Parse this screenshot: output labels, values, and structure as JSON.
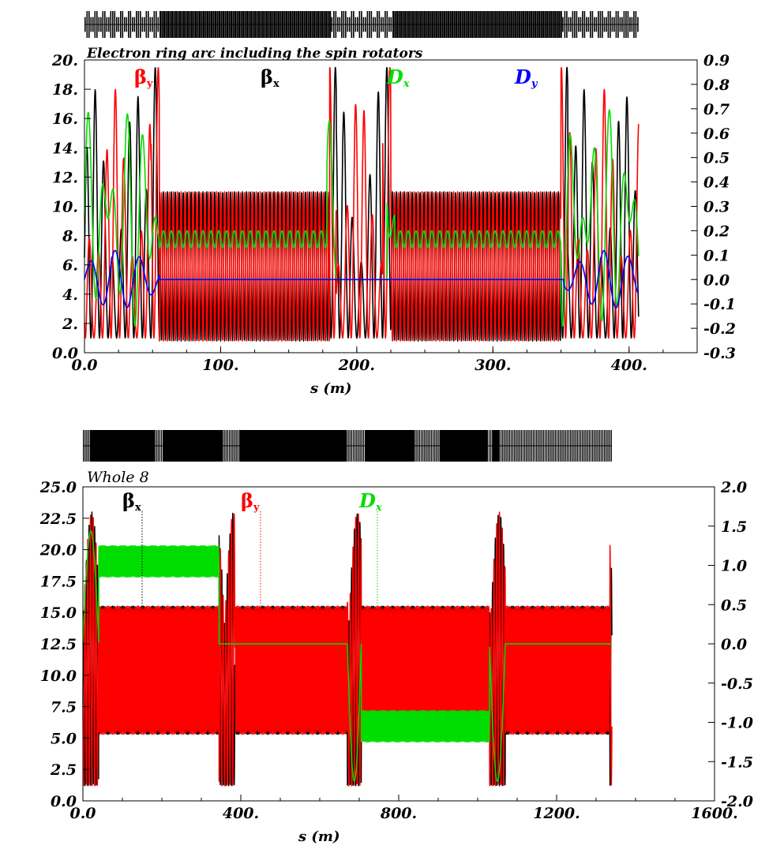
{
  "chart_data": [
    {
      "type": "line",
      "title": "Electron ring arc including the spin rotators",
      "xlabel": "s (m)",
      "x_ticks": [
        "0.0",
        "100.",
        "200.",
        "300.",
        "400."
      ],
      "y_left_ticks": [
        "0.0",
        "2.",
        "4.",
        "6.",
        "8.",
        "10.",
        "12.",
        "14.",
        "16.",
        "18.",
        "20."
      ],
      "y_right_ticks": [
        "-0.3",
        "-0.2",
        "-0.1",
        "0.0",
        "0.1",
        "0.2",
        "0.3",
        "0.4",
        "0.5",
        "0.6",
        "0.7",
        "0.8",
        "0.9"
      ],
      "xlim": [
        0,
        450
      ],
      "ylim_left": [
        0,
        20
      ],
      "ylim_right": [
        -0.3,
        0.9
      ],
      "s_end": 407,
      "series": [
        {
          "name": "βy",
          "label_main": "β",
          "label_sub": "y",
          "color": "#ff0000",
          "axis": "left"
        },
        {
          "name": "βx",
          "label_main": "β",
          "label_sub": "x",
          "color": "#000000",
          "axis": "left"
        },
        {
          "name": "Dx",
          "label_main": "D",
          "label_sub": "x",
          "color": "#00dd00",
          "axis": "right"
        },
        {
          "name": "Dy",
          "label_main": "D",
          "label_sub": "y",
          "color": "#0000ff",
          "axis": "right"
        }
      ],
      "arc_cells": {
        "beta_x_range": [
          0.8,
          11.0
        ],
        "beta_y_range": [
          0.8,
          11.0
        ],
        "dx_range": [
          0.13,
          0.2
        ],
        "dy": 0.0
      },
      "peaks": {
        "beta_max": 19.5,
        "dx_max": 0.78,
        "dy_max": 0.14,
        "dy_min": -0.13
      }
    },
    {
      "type": "line",
      "title": "Whole 8",
      "xlabel": "s (m)",
      "x_ticks": [
        "0.0",
        "400.",
        "800.",
        "1200.",
        "1600."
      ],
      "y_left_ticks": [
        "0.0",
        "2.5",
        "5.0",
        "7.5",
        "10.0",
        "12.5",
        "15.0",
        "17.5",
        "20.0",
        "22.5",
        "25.0"
      ],
      "y_right_ticks": [
        "-2.0",
        "-1.5",
        "-1.0",
        "-0.5",
        "0.0",
        "0.5",
        "1.0",
        "1.5",
        "2.0"
      ],
      "xlim": [
        0,
        1600
      ],
      "ylim_left": [
        0,
        25
      ],
      "ylim_right": [
        -2.0,
        2.0
      ],
      "s_end": 1340,
      "series": [
        {
          "name": "βx",
          "label_main": "β",
          "label_sub": "x",
          "color": "#000000",
          "axis": "left"
        },
        {
          "name": "βy",
          "label_main": "β",
          "label_sub": "y",
          "color": "#ff0000",
          "axis": "left"
        },
        {
          "name": "Dx",
          "label_main": "D",
          "label_sub": "x",
          "color": "#00dd00",
          "axis": "right"
        }
      ],
      "arc_cells": {
        "beta_range": [
          5.3,
          15.5
        ],
        "dx_arc1": [
          0.85,
          1.25
        ],
        "dx_arc2": [
          -1.25,
          -0.85
        ]
      },
      "peaks": {
        "beta_max": 23.5,
        "dx_max": 1.6,
        "dx_min": -1.75
      }
    }
  ]
}
